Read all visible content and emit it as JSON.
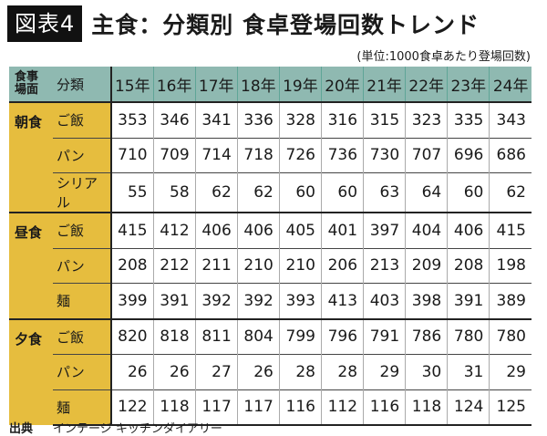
{
  "header": {
    "figure_label": "図表4",
    "title": "主食：分類別 食卓登場回数トレンド",
    "unit": "(単位:1000食卓あたり登場回数)"
  },
  "table": {
    "col_meal": "食事場面",
    "col_meal_l1": "食事",
    "col_meal_l2": "場面",
    "col_category": "分類",
    "years": [
      "15年",
      "16年",
      "17年",
      "18年",
      "19年",
      "20年",
      "21年",
      "22年",
      "23年",
      "24年"
    ],
    "groups": [
      {
        "meal": "朝食",
        "rows": [
          {
            "category": "ご飯",
            "values": [
              353,
              346,
              341,
              336,
              328,
              316,
              315,
              323,
              335,
              343
            ]
          },
          {
            "category": "パン",
            "values": [
              710,
              709,
              714,
              718,
              726,
              736,
              730,
              707,
              696,
              686
            ]
          },
          {
            "category": "シリアル",
            "values": [
              55,
              58,
              62,
              62,
              60,
              60,
              63,
              64,
              60,
              62
            ]
          }
        ]
      },
      {
        "meal": "昼食",
        "rows": [
          {
            "category": "ご飯",
            "values": [
              415,
              412,
              406,
              406,
              405,
              401,
              397,
              404,
              406,
              415
            ]
          },
          {
            "category": "パン",
            "values": [
              208,
              212,
              211,
              210,
              210,
              206,
              213,
              209,
              208,
              198
            ]
          },
          {
            "category": "麺",
            "values": [
              399,
              391,
              392,
              392,
              393,
              413,
              403,
              398,
              391,
              389
            ]
          }
        ]
      },
      {
        "meal": "夕食",
        "rows": [
          {
            "category": "ご飯",
            "values": [
              820,
              818,
              811,
              804,
              799,
              796,
              791,
              786,
              780,
              780
            ]
          },
          {
            "category": "パン",
            "values": [
              26,
              26,
              27,
              26,
              28,
              28,
              29,
              30,
              31,
              29
            ]
          },
          {
            "category": "麺",
            "values": [
              122,
              118,
              117,
              117,
              116,
              112,
              116,
              118,
              124,
              125
            ]
          }
        ]
      }
    ]
  },
  "source": {
    "label": "出典",
    "text": "インテージ キッチンダイアリー"
  },
  "colors": {
    "header_bg": "#8fb9b1",
    "label_bg": "#e6bd3e",
    "badge_bg": "#111111"
  },
  "chart_data": {
    "type": "table",
    "title": "主食：分類別 食卓登場回数トレンド",
    "subtitle": "(単位:1000食卓あたり登場回数)",
    "columns": [
      "食事場面",
      "分類",
      "15年",
      "16年",
      "17年",
      "18年",
      "19年",
      "20年",
      "21年",
      "22年",
      "23年",
      "24年"
    ],
    "categories": [
      "15年",
      "16年",
      "17年",
      "18年",
      "19年",
      "20年",
      "21年",
      "22年",
      "23年",
      "24年"
    ],
    "series": [
      {
        "name": "朝食-ご飯",
        "values": [
          353,
          346,
          341,
          336,
          328,
          316,
          315,
          323,
          335,
          343
        ]
      },
      {
        "name": "朝食-パン",
        "values": [
          710,
          709,
          714,
          718,
          726,
          736,
          730,
          707,
          696,
          686
        ]
      },
      {
        "name": "朝食-シリアル",
        "values": [
          55,
          58,
          62,
          62,
          60,
          60,
          63,
          64,
          60,
          62
        ]
      },
      {
        "name": "昼食-ご飯",
        "values": [
          415,
          412,
          406,
          406,
          405,
          401,
          397,
          404,
          406,
          415
        ]
      },
      {
        "name": "昼食-パン",
        "values": [
          208,
          212,
          211,
          210,
          210,
          206,
          213,
          209,
          208,
          198
        ]
      },
      {
        "name": "昼食-麺",
        "values": [
          399,
          391,
          392,
          392,
          393,
          413,
          403,
          398,
          391,
          389
        ]
      },
      {
        "name": "夕食-ご飯",
        "values": [
          820,
          818,
          811,
          804,
          799,
          796,
          791,
          786,
          780,
          780
        ]
      },
      {
        "name": "夕食-パン",
        "values": [
          26,
          26,
          27,
          26,
          28,
          28,
          29,
          30,
          31,
          29
        ]
      },
      {
        "name": "夕食-麺",
        "values": [
          122,
          118,
          117,
          117,
          116,
          112,
          116,
          118,
          124,
          125
        ]
      }
    ],
    "source": "出典 インテージ キッチンダイアリー"
  }
}
